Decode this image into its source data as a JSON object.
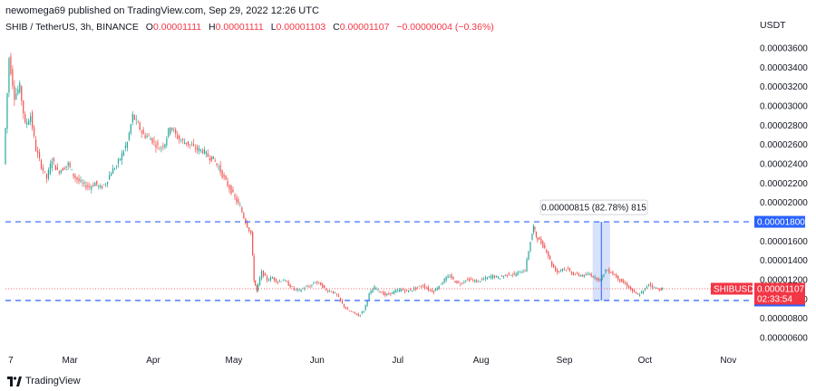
{
  "header": {
    "published": "newomega69 published on TradingView.com, Sep 29, 2022 12:26 UTC"
  },
  "symbol": {
    "name": "SHIB / TetherUS, 3h, BINANCE",
    "o_label": "O",
    "o_value": "0.00001111",
    "h_label": "H",
    "h_value": "0.00001111",
    "l_label": "L",
    "l_value": "0.00001103",
    "c_label": "C",
    "c_value": "0.00001107",
    "change": "−0.00000004 (−0.36%)"
  },
  "price_scale": {
    "currency": "USDT"
  },
  "footer": {
    "brand": "TradingView"
  },
  "colors": {
    "up": "#26a69a",
    "down": "#ef5350",
    "level_line": "#2962ff",
    "price_tag": "#f23645",
    "range_fill": "#c9d7f8"
  },
  "annotations": {
    "range_label": "0.00000815 (82.78%) 815",
    "level_high": "0.00001800",
    "level_low": "0.00000985",
    "price_tag_symbol": "SHIBUSDT",
    "price_tag_value": "0.00001107",
    "price_tag_countdown": "02:33:54"
  },
  "chart_data": {
    "type": "candlestick",
    "title": "SHIB / TetherUS, 3h, BINANCE",
    "ylabel": "USDT",
    "ylim": [
      4.6e-06,
      3.76e-05
    ],
    "y_ticks": [
      "0.00003600",
      "0.00003400",
      "0.00003200",
      "0.00003000",
      "0.00002800",
      "0.00002600",
      "0.00002400",
      "0.00002200",
      "0.00002000",
      "0.00001800",
      "0.00001600",
      "0.00001400",
      "0.00001200",
      "0.00001000",
      "0.00000800",
      "0.00000600"
    ],
    "x_ticks": [
      "7",
      "Mar",
      "Apr",
      "May",
      "Jun",
      "Jul",
      "Aug",
      "Sep",
      "Oct",
      "Nov"
    ],
    "x_tick_days": [
      6,
      28,
      59,
      89,
      120,
      150,
      181,
      212,
      242,
      273
    ],
    "xlim_days": [
      4,
      282
    ],
    "horizontal_levels": [
      1.8e-05,
      9.85e-06
    ],
    "range_measure": {
      "from_day": 222.5,
      "to_day": 229,
      "low": 9.85e-06,
      "high": 1.8e-05
    },
    "last_price": 1.107e-05,
    "price_path": [
      [
        4,
        2.4e-05
      ],
      [
        6,
        3.5e-05
      ],
      [
        8,
        3.1e-05
      ],
      [
        10,
        3.2e-05
      ],
      [
        12,
        2.8e-05
      ],
      [
        14,
        2.9e-05
      ],
      [
        16,
        2.55e-05
      ],
      [
        18,
        2.38e-05
      ],
      [
        20,
        2.25e-05
      ],
      [
        22,
        2.45e-05
      ],
      [
        24,
        2.32e-05
      ],
      [
        26,
        2.35e-05
      ],
      [
        28,
        2.4e-05
      ],
      [
        30,
        2.28e-05
      ],
      [
        32,
        2.22e-05
      ],
      [
        34,
        2.18e-05
      ],
      [
        36,
        2.16e-05
      ],
      [
        38,
        2.2e-05
      ],
      [
        40,
        2.15e-05
      ],
      [
        42,
        2.2e-05
      ],
      [
        44,
        2.32e-05
      ],
      [
        46,
        2.38e-05
      ],
      [
        48,
        2.5e-05
      ],
      [
        50,
        2.62e-05
      ],
      [
        52,
        2.9e-05
      ],
      [
        54,
        2.8e-05
      ],
      [
        56,
        2.7e-05
      ],
      [
        58,
        2.68e-05
      ],
      [
        60,
        2.62e-05
      ],
      [
        62,
        2.56e-05
      ],
      [
        64,
        2.62e-05
      ],
      [
        66,
        2.8e-05
      ],
      [
        68,
        2.7e-05
      ],
      [
        70,
        2.64e-05
      ],
      [
        72,
        2.62e-05
      ],
      [
        74,
        2.58e-05
      ],
      [
        76,
        2.55e-05
      ],
      [
        78,
        2.54e-05
      ],
      [
        80,
        2.48e-05
      ],
      [
        82,
        2.45e-05
      ],
      [
        84,
        2.36e-05
      ],
      [
        86,
        2.25e-05
      ],
      [
        88,
        2.15e-05
      ],
      [
        90,
        2.05e-05
      ],
      [
        92,
        1.95e-05
      ],
      [
        94,
        1.8e-05
      ],
      [
        96,
        1.68e-05
      ],
      [
        97,
        1.2e-05
      ],
      [
        98,
        1.08e-05
      ],
      [
        100,
        1.28e-05
      ],
      [
        102,
        1.2e-05
      ],
      [
        104,
        1.22e-05
      ],
      [
        106,
        1.18e-05
      ],
      [
        108,
        1.2e-05
      ],
      [
        110,
        1.15e-05
      ],
      [
        112,
        1.1e-05
      ],
      [
        114,
        1.09e-05
      ],
      [
        116,
        1.12e-05
      ],
      [
        118,
        1.13e-05
      ],
      [
        120,
        1.18e-05
      ],
      [
        122,
        1.15e-05
      ],
      [
        124,
        1.09e-05
      ],
      [
        126,
        1.08e-05
      ],
      [
        128,
        1.04e-05
      ],
      [
        130,
        9.5e-06
      ],
      [
        132,
        8.8e-06
      ],
      [
        134,
        8.6e-06
      ],
      [
        136,
        8.3e-06
      ],
      [
        138,
        8.8e-06
      ],
      [
        140,
        1.05e-05
      ],
      [
        142,
        1.12e-05
      ],
      [
        144,
        1.08e-05
      ],
      [
        146,
        1.04e-05
      ],
      [
        148,
        1.06e-05
      ],
      [
        150,
        1.08e-05
      ],
      [
        152,
        1.1e-05
      ],
      [
        154,
        1.08e-05
      ],
      [
        156,
        1.1e-05
      ],
      [
        158,
        1.12e-05
      ],
      [
        160,
        1.14e-05
      ],
      [
        162,
        1.1e-05
      ],
      [
        164,
        1.08e-05
      ],
      [
        166,
        1.14e-05
      ],
      [
        168,
        1.2e-05
      ],
      [
        170,
        1.24e-05
      ],
      [
        172,
        1.18e-05
      ],
      [
        174,
        1.16e-05
      ],
      [
        176,
        1.2e-05
      ],
      [
        178,
        1.2e-05
      ],
      [
        180,
        1.18e-05
      ],
      [
        182,
        1.2e-05
      ],
      [
        184,
        1.22e-05
      ],
      [
        186,
        1.24e-05
      ],
      [
        188,
        1.22e-05
      ],
      [
        190,
        1.24e-05
      ],
      [
        192,
        1.26e-05
      ],
      [
        194,
        1.25e-05
      ],
      [
        196,
        1.28e-05
      ],
      [
        198,
        1.3e-05
      ],
      [
        200,
        1.6e-05
      ],
      [
        201,
        1.75e-05
      ],
      [
        202,
        1.65e-05
      ],
      [
        204,
        1.58e-05
      ],
      [
        206,
        1.5e-05
      ],
      [
        208,
        1.35e-05
      ],
      [
        210,
        1.28e-05
      ],
      [
        212,
        1.32e-05
      ],
      [
        214,
        1.3e-05
      ],
      [
        216,
        1.26e-05
      ],
      [
        218,
        1.25e-05
      ],
      [
        220,
        1.24e-05
      ],
      [
        222,
        1.26e-05
      ],
      [
        224,
        1.22e-05
      ],
      [
        226,
        1.2e-05
      ],
      [
        228,
        1.3e-05
      ],
      [
        230,
        1.28e-05
      ],
      [
        232,
        1.23e-05
      ],
      [
        234,
        1.18e-05
      ],
      [
        236,
        1.14e-05
      ],
      [
        238,
        1.08e-05
      ],
      [
        240,
        1.04e-05
      ],
      [
        242,
        1.08e-05
      ],
      [
        244,
        1.16e-05
      ],
      [
        246,
        1.12e-05
      ],
      [
        248,
        1.1e-05
      ],
      [
        249,
        1.107e-05
      ]
    ]
  }
}
